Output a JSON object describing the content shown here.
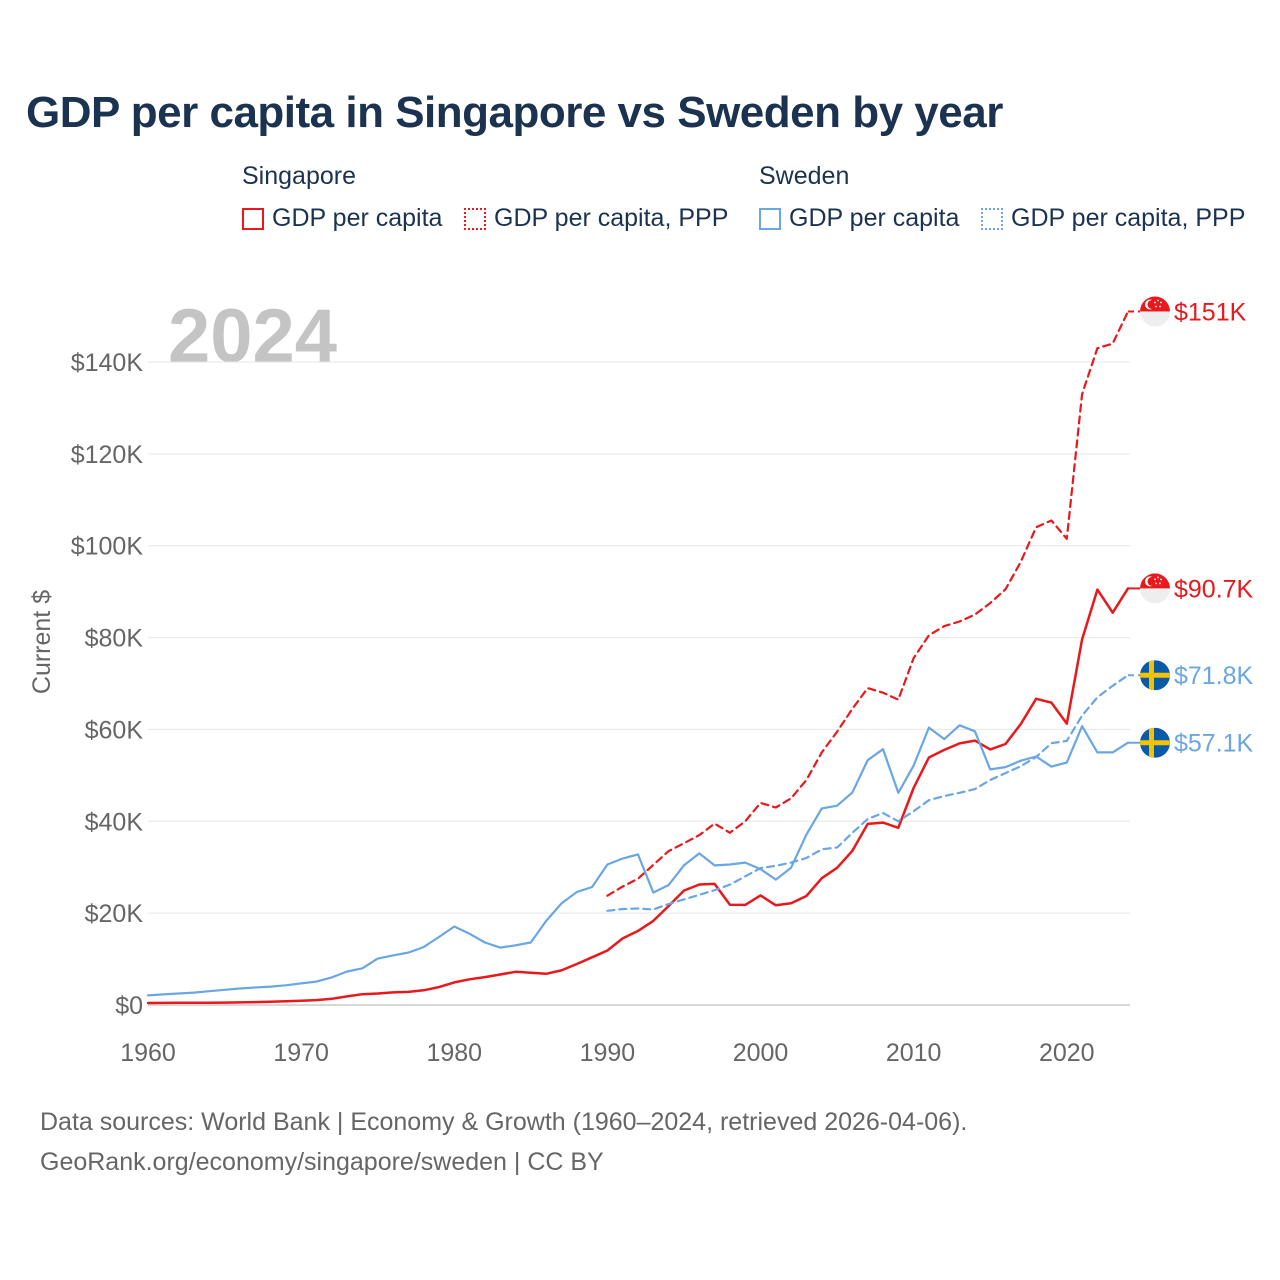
{
  "title": "GDP per capita in Singapore vs Sweden by year",
  "legend": {
    "singapore": {
      "title": "Singapore",
      "solid": "GDP per capita",
      "dotted": "GDP per capita, PPP"
    },
    "sweden": {
      "title": "Sweden",
      "solid": "GDP per capita",
      "dotted": "GDP per capita, PPP"
    }
  },
  "year_watermark": "2024",
  "source_line1": "Data sources: World Bank | Economy & Growth (1960–2024, retrieved 2026-04-06).",
  "source_line2": "GeoRank.org/economy/singapore/sweden | CC BY",
  "colors": {
    "singapore": "#e8181c",
    "sweden": "#6aa6e3",
    "axis_text": "#666666",
    "title": "#1b3350"
  },
  "chart_data": {
    "type": "line",
    "title": "GDP per capita in Singapore vs Sweden by year",
    "xlabel": "",
    "ylabel": "Current $",
    "xlim": [
      1960,
      2024
    ],
    "ylim": [
      0,
      140000
    ],
    "x_ticks": [
      1960,
      1970,
      1980,
      1990,
      2000,
      2010,
      2020
    ],
    "x_tick_labels": [
      "1960",
      "1970",
      "1980",
      "1990",
      "2000",
      "2010",
      "2020"
    ],
    "y_ticks": [
      0,
      20000,
      40000,
      60000,
      80000,
      100000,
      120000,
      140000
    ],
    "y_tick_labels": [
      "$0",
      "$20K",
      "$40K",
      "$60K",
      "$80K",
      "$100K",
      "$120K",
      "$140K"
    ],
    "grid": true,
    "series": [
      {
        "name": "Singapore GDP per capita",
        "country": "singapore",
        "style": "solid",
        "end_label": "$90.7K",
        "x": [
          1960,
          1961,
          1962,
          1963,
          1964,
          1965,
          1966,
          1967,
          1968,
          1969,
          1970,
          1971,
          1972,
          1973,
          1974,
          1975,
          1976,
          1977,
          1978,
          1979,
          1980,
          1981,
          1982,
          1983,
          1984,
          1985,
          1986,
          1987,
          1988,
          1989,
          1990,
          1991,
          1992,
          1993,
          1994,
          1995,
          1996,
          1997,
          1998,
          1999,
          2000,
          2001,
          2002,
          2003,
          2004,
          2005,
          2006,
          2007,
          2008,
          2009,
          2010,
          2011,
          2012,
          2013,
          2014,
          2015,
          2016,
          2017,
          2018,
          2019,
          2020,
          2021,
          2022,
          2023,
          2024
        ],
        "values": [
          428,
          449,
          472,
          511,
          485,
          517,
          567,
          626,
          709,
          813,
          925,
          1074,
          1353,
          1873,
          2359,
          2496,
          2745,
          2846,
          3193,
          3899,
          4928,
          5596,
          6077,
          6633,
          7228,
          7002,
          6799,
          7539,
          8917,
          10394,
          11862,
          14505,
          16136,
          18302,
          21553,
          24915,
          26233,
          26376,
          21829,
          21797,
          23853,
          21700,
          22160,
          23730,
          27608,
          29870,
          33580,
          39433,
          39722,
          38577,
          47237,
          53891,
          55546,
          56967,
          57563,
          55647,
          56828,
          61176,
          66679,
          65831,
          61274,
          79601,
          90436,
          85415,
          90700
        ]
      },
      {
        "name": "Singapore GDP per capita, PPP",
        "country": "singapore",
        "style": "dashed",
        "end_label": "$151K",
        "x": [
          1990,
          1991,
          1992,
          1993,
          1994,
          1995,
          1996,
          1997,
          1998,
          1999,
          2000,
          2001,
          2002,
          2003,
          2004,
          2005,
          2006,
          2007,
          2008,
          2009,
          2010,
          2011,
          2012,
          2013,
          2014,
          2015,
          2016,
          2017,
          2018,
          2019,
          2020,
          2021,
          2022,
          2023,
          2024
        ],
        "values": [
          23800,
          25800,
          27500,
          30500,
          33500,
          35200,
          37000,
          39500,
          37500,
          40000,
          44000,
          43000,
          45000,
          49000,
          55000,
          59500,
          64500,
          69000,
          68000,
          66500,
          75500,
          80500,
          82500,
          83500,
          85000,
          87500,
          90500,
          96500,
          104000,
          105500,
          101500,
          133000,
          143000,
          144000,
          151000
        ]
      },
      {
        "name": "Sweden GDP per capita",
        "country": "sweden",
        "style": "solid",
        "end_label": "$57.1K",
        "x": [
          1960,
          1961,
          1962,
          1963,
          1964,
          1965,
          1966,
          1967,
          1968,
          1969,
          1970,
          1971,
          1972,
          1973,
          1974,
          1975,
          1976,
          1977,
          1978,
          1979,
          1980,
          1981,
          1982,
          1983,
          1984,
          1985,
          1986,
          1987,
          1988,
          1989,
          1990,
          1991,
          1992,
          1993,
          1994,
          1995,
          1996,
          1997,
          1998,
          1999,
          2000,
          2001,
          2002,
          2003,
          2004,
          2005,
          2006,
          2007,
          2008,
          2009,
          2010,
          2011,
          2012,
          2013,
          2014,
          2015,
          2016,
          2017,
          2018,
          2019,
          2020,
          2021,
          2022,
          2023,
          2024
        ],
        "values": [
          2100,
          2300,
          2500,
          2700,
          3000,
          3300,
          3600,
          3800,
          4000,
          4300,
          4700,
          5100,
          6000,
          7300,
          8000,
          10100,
          10800,
          11400,
          12600,
          14800,
          17100,
          15500,
          13600,
          12500,
          13000,
          13600,
          18300,
          22100,
          24600,
          25700,
          30600,
          31900,
          32800,
          24500,
          26100,
          30400,
          33000,
          30400,
          30600,
          31000,
          29600,
          27300,
          29900,
          37100,
          42800,
          43400,
          46300,
          53300,
          55700,
          46200,
          52100,
          60400,
          57900,
          60900,
          59600,
          51300,
          51800,
          53200,
          54100,
          51900,
          52800,
          60700,
          55000,
          55000,
          57100
        ]
      },
      {
        "name": "Sweden GDP per capita, PPP",
        "country": "sweden",
        "style": "dashed",
        "end_label": "$71.8K",
        "x": [
          1990,
          1991,
          1992,
          1993,
          1994,
          1995,
          1996,
          1997,
          1998,
          1999,
          2000,
          2001,
          2002,
          2003,
          2004,
          2005,
          2006,
          2007,
          2008,
          2009,
          2010,
          2011,
          2012,
          2013,
          2014,
          2015,
          2016,
          2017,
          2018,
          2019,
          2020,
          2021,
          2022,
          2023,
          2024
        ],
        "values": [
          20500,
          20900,
          21000,
          20800,
          22000,
          23000,
          24000,
          25000,
          26200,
          28000,
          29800,
          30300,
          31000,
          32000,
          33900,
          34300,
          37500,
          40500,
          41800,
          40000,
          42200,
          44600,
          45500,
          46200,
          47000,
          49000,
          50500,
          52000,
          54000,
          57000,
          57500,
          63000,
          67000,
          69500,
          71800
        ]
      }
    ]
  }
}
